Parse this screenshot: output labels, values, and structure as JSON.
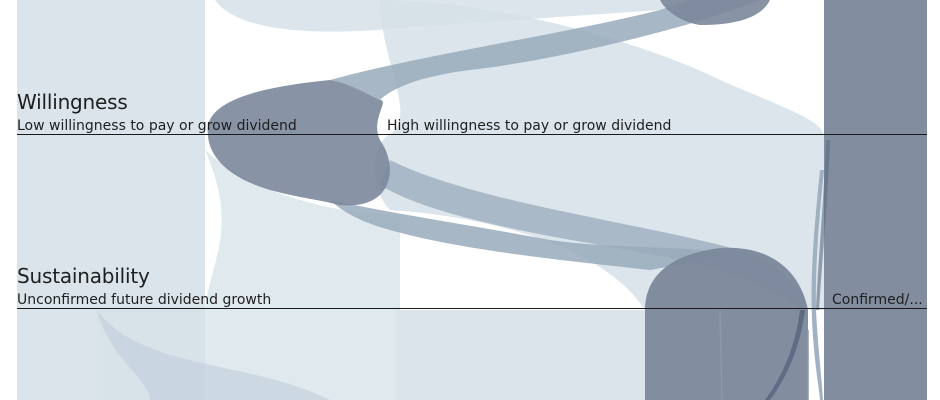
{
  "dimensions": [
    {
      "title": "Willingness",
      "categories": [
        "Low willingness to pay or grow dividend",
        "High willingness to pay or grow dividend"
      ]
    },
    {
      "title": "Sustainability",
      "categories": [
        "Unconfirmed future dividend growth",
        "Confirmed/..."
      ]
    }
  ],
  "colors": {
    "light_flow": "#d6e1e8",
    "mid_flow": "#98aabb",
    "dark_flow": "#7b879b",
    "darkest_flow": "#5d6a82",
    "axis": "#1a1a1a",
    "text": "#1f1f1f"
  }
}
